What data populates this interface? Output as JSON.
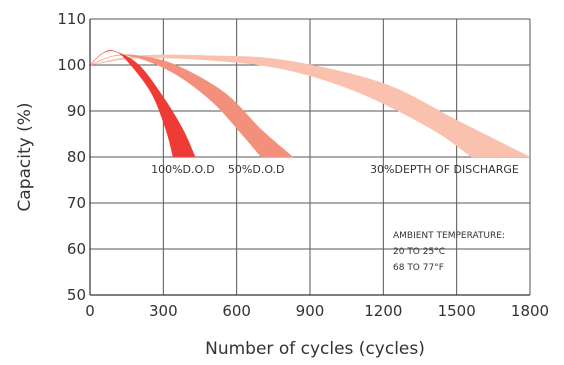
{
  "chart_data": {
    "type": "area",
    "title": "",
    "xlabel": "Number of cycles (cycles)",
    "ylabel": "Capacity (%)",
    "xlim": [
      0,
      1800
    ],
    "ylim": [
      50,
      110
    ],
    "x_ticks": [
      0,
      300,
      600,
      900,
      1200,
      1500,
      1800
    ],
    "y_ticks": [
      50,
      60,
      70,
      80,
      90,
      100,
      110
    ],
    "x_tick_labels": [
      "0",
      "300",
      "600",
      "900",
      "1200",
      "1500",
      "1800"
    ],
    "y_tick_labels": [
      "50",
      "60",
      "70",
      "80",
      "90",
      "100",
      "110"
    ],
    "grid": true,
    "series": [
      {
        "name": "100%D.O.D",
        "color": "#ef3b36",
        "upper": [
          [
            0,
            100
          ],
          [
            50,
            102.5
          ],
          [
            100,
            103
          ],
          [
            200,
            100
          ],
          [
            300,
            93
          ],
          [
            380,
            86
          ],
          [
            430,
            80
          ]
        ],
        "lower": [
          [
            0,
            100
          ],
          [
            50,
            102.5
          ],
          [
            100,
            103
          ],
          [
            150,
            101
          ],
          [
            250,
            94
          ],
          [
            310,
            86
          ],
          [
            340,
            80
          ]
        ]
      },
      {
        "name": "50%D.O.D",
        "color": "#f3907c",
        "upper": [
          [
            0,
            100
          ],
          [
            100,
            102
          ],
          [
            200,
            102
          ],
          [
            350,
            100
          ],
          [
            550,
            94
          ],
          [
            700,
            86
          ],
          [
            830,
            80
          ]
        ],
        "lower": [
          [
            0,
            100
          ],
          [
            100,
            102
          ],
          [
            200,
            101.5
          ],
          [
            350,
            98
          ],
          [
            500,
            92
          ],
          [
            620,
            85
          ],
          [
            700,
            80
          ]
        ]
      },
      {
        "name": "30%DEPTH OF DISCHARGE",
        "color": "#fac2ae",
        "upper": [
          [
            0,
            100
          ],
          [
            200,
            102
          ],
          [
            500,
            102
          ],
          [
            800,
            101
          ],
          [
            1200,
            96
          ],
          [
            1500,
            88
          ],
          [
            1800,
            80
          ]
        ],
        "lower": [
          [
            0,
            100
          ],
          [
            200,
            101.5
          ],
          [
            500,
            101
          ],
          [
            800,
            99
          ],
          [
            1100,
            94
          ],
          [
            1400,
            86
          ],
          [
            1560,
            80
          ]
        ]
      }
    ],
    "band_labels": [
      {
        "text": "100%D.O.D",
        "x": 380,
        "y": 76.5
      },
      {
        "text": "50%D.O.D",
        "x": 680,
        "y": 76.5
      },
      {
        "text": "30%DEPTH OF DISCHARGE",
        "x": 1450,
        "y": 76.5
      }
    ],
    "annotation": {
      "lines": [
        "AMBIENT TEMPERATURE:",
        "20 TO 25°C",
        "68 TO 77°F"
      ]
    }
  }
}
